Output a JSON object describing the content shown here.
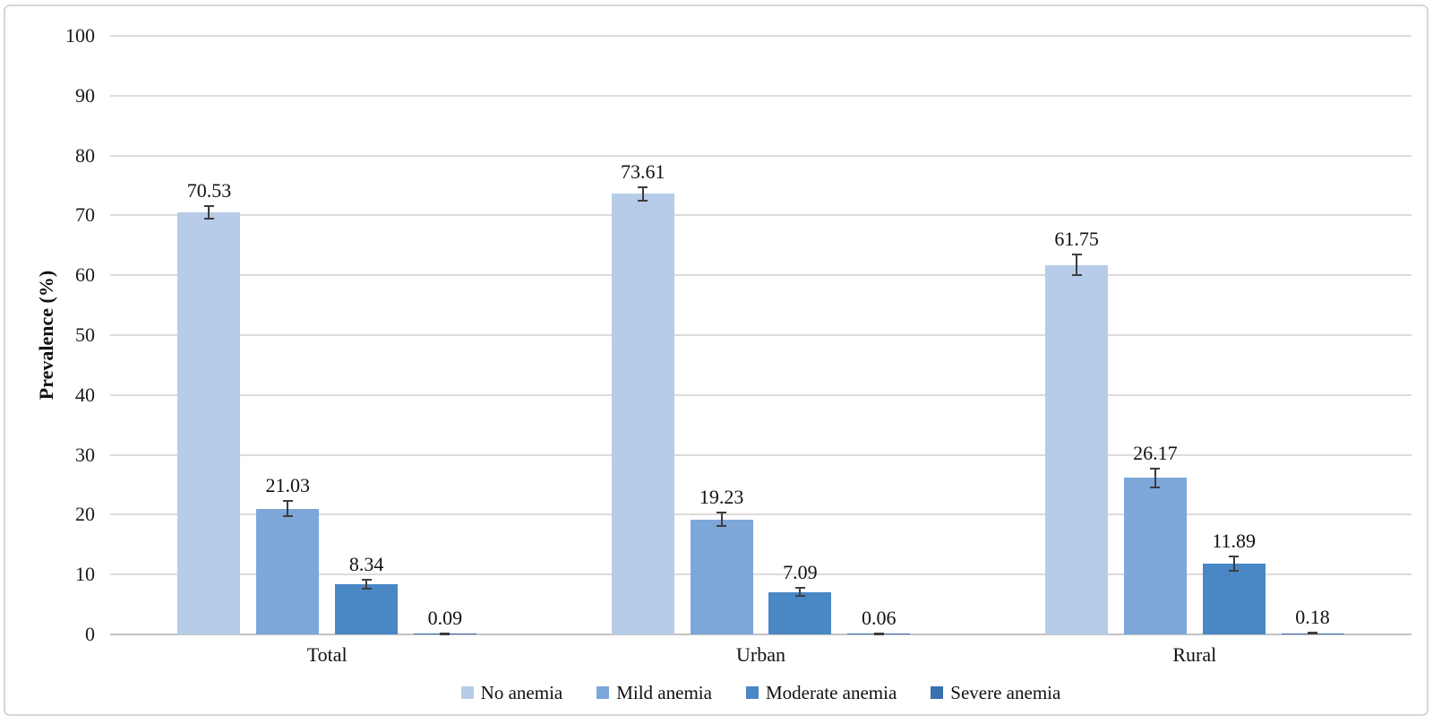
{
  "figure": {
    "background_color": "#ffffff",
    "border_color": "#d7d7d7"
  },
  "chart_data": {
    "type": "bar",
    "title": "",
    "xlabel": "",
    "ylabel": "Prevalence (%)",
    "categories": [
      "Total",
      "Urban",
      "Rural"
    ],
    "series": [
      {
        "name": "No anemia",
        "color": "#b7cce9",
        "values": [
          70.53,
          73.61,
          61.75
        ],
        "errors": [
          1.0,
          1.1,
          1.75
        ]
      },
      {
        "name": "Mild anemia",
        "color": "#7da7d9",
        "values": [
          21.03,
          19.23,
          26.17
        ],
        "errors": [
          1.25,
          1.1,
          1.55
        ]
      },
      {
        "name": "Moderate anemia",
        "color": "#4a87c5",
        "values": [
          8.34,
          7.09,
          11.89
        ],
        "errors": [
          0.75,
          0.65,
          1.2
        ]
      },
      {
        "name": "Severe anemia",
        "color": "#3a70ad",
        "values": [
          0.09,
          0.06,
          0.18
        ],
        "errors": [
          0.06,
          0.05,
          0.1
        ]
      }
    ],
    "value_label_decimals": 2,
    "ylim": [
      0,
      100
    ],
    "yticks": [
      "0",
      "10",
      "20",
      "30",
      "40",
      "50",
      "60",
      "70",
      "80",
      "90",
      "100"
    ],
    "grid": "horizontal",
    "gridline_color": "#dcdcdc",
    "axis_line_color": "#c3c3c3",
    "error_bars": true,
    "error_bar_color": "#3d3d3d",
    "legend_position": "bottom"
  }
}
